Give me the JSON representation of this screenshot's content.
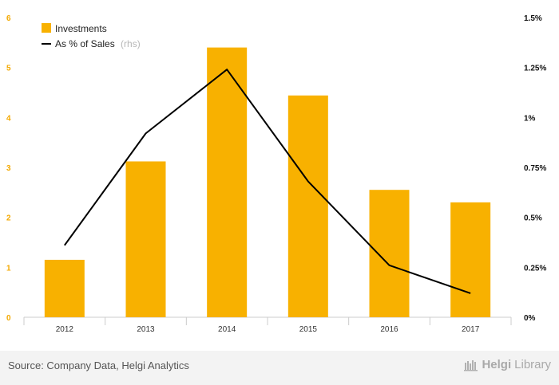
{
  "chart_data": {
    "type": "bar",
    "categories": [
      "2012",
      "2013",
      "2014",
      "2015",
      "2016",
      "2017"
    ],
    "series": [
      {
        "name": "Investments",
        "type": "bar",
        "axis": "left",
        "color": "#f8b100",
        "values": [
          1.15,
          3.12,
          5.4,
          4.44,
          2.55,
          2.3
        ]
      },
      {
        "name": "As % of Sales",
        "name_suffix": "(rhs)",
        "type": "line",
        "axis": "right",
        "color": "#000000",
        "values": [
          0.36,
          0.92,
          1.24,
          0.68,
          0.26,
          0.12
        ]
      }
    ],
    "y_left": {
      "ylim": [
        0,
        6
      ],
      "ticks": [
        0,
        1,
        2,
        3,
        4,
        5,
        6
      ],
      "tick_labels": [
        "0",
        "1",
        "2",
        "3",
        "4",
        "5",
        "6"
      ]
    },
    "y_right": {
      "ylim": [
        0,
        1.5
      ],
      "ticks": [
        0,
        0.25,
        0.5,
        0.75,
        1,
        1.25,
        1.5
      ],
      "tick_labels": [
        "0%",
        "0.25%",
        "0.5%",
        "0.75%",
        "1%",
        "1.25%",
        "1.5%"
      ]
    },
    "title": "",
    "xlabel": "",
    "ylabel": "",
    "grid": false,
    "legend": "top-left"
  },
  "legend": {
    "investments": "Investments",
    "sales_share": "As % of Sales",
    "sales_share_suffix": "(rhs)"
  },
  "footer": {
    "source": "Source: Company Data, Helgi Analytics",
    "brand_bold": "Helgi",
    "brand_light": "Library"
  },
  "colors": {
    "bar": "#f8b100",
    "line": "#000000",
    "left_axis_text": "#f4a900"
  }
}
